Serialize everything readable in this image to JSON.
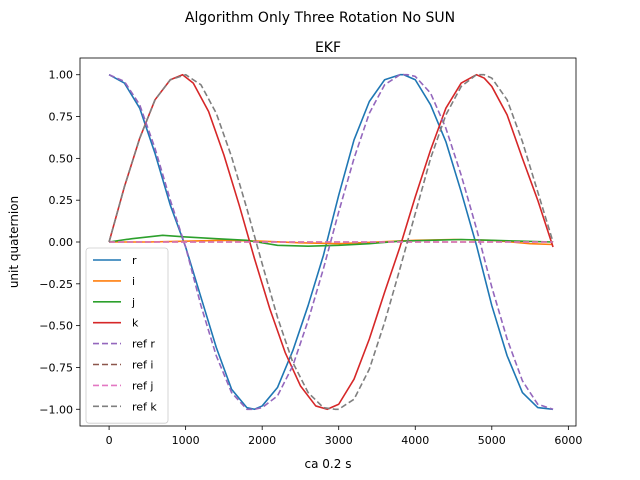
{
  "chart_data": {
    "type": "line",
    "suptitle": "Algorithm Only Three Rotation No SUN",
    "title": "EKF",
    "xlabel": "ca 0.2 s",
    "ylabel": "unit quaternion",
    "xlim": [
      -380,
      6100
    ],
    "ylim": [
      -1.1,
      1.1
    ],
    "xticks": [
      0,
      1000,
      2000,
      3000,
      4000,
      5000,
      6000
    ],
    "yticks": [
      -1.0,
      -0.75,
      -0.5,
      -0.25,
      0.0,
      0.25,
      0.5,
      0.75,
      1.0
    ],
    "grid": false,
    "legend_position": "lower-left",
    "series": [
      {
        "name": "r",
        "color": "#1f77b4",
        "dash": "solid",
        "x": [
          0,
          200,
          400,
          600,
          800,
          1000,
          1200,
          1400,
          1600,
          1800,
          1900,
          2000,
          2200,
          2400,
          2600,
          2800,
          3000,
          3200,
          3400,
          3600,
          3800,
          3850,
          4000,
          4200,
          4400,
          4600,
          4800,
          5000,
          5200,
          5400,
          5600,
          5800
        ],
        "y": [
          1.0,
          0.95,
          0.8,
          0.53,
          0.22,
          -0.03,
          -0.33,
          -0.63,
          -0.88,
          -0.99,
          -1.0,
          -0.98,
          -0.87,
          -0.65,
          -0.38,
          -0.08,
          0.28,
          0.61,
          0.84,
          0.97,
          1.0,
          1.0,
          0.97,
          0.82,
          0.6,
          0.3,
          -0.02,
          -0.38,
          -0.68,
          -0.9,
          -0.99,
          -1.0
        ]
      },
      {
        "name": "i",
        "color": "#ff7f0e",
        "dash": "solid",
        "x": [
          0,
          500,
          1000,
          1500,
          2000,
          2500,
          3000,
          3500,
          4000,
          4500,
          5000,
          5500,
          5800
        ],
        "y": [
          0.0,
          0.0,
          0.005,
          0.01,
          0.005,
          -0.005,
          -0.01,
          0.0,
          0.01,
          0.015,
          0.01,
          -0.01,
          -0.015
        ]
      },
      {
        "name": "j",
        "color": "#2ca02c",
        "dash": "solid",
        "x": [
          0,
          300,
          700,
          1000,
          1400,
          1800,
          2200,
          2600,
          3000,
          3400,
          3800,
          4200,
          4600,
          5000,
          5400,
          5800
        ],
        "y": [
          0.0,
          0.02,
          0.04,
          0.03,
          0.02,
          0.01,
          -0.02,
          -0.025,
          -0.02,
          -0.01,
          0.005,
          0.01,
          0.015,
          0.01,
          0.005,
          0.0
        ]
      },
      {
        "name": "k",
        "color": "#d62728",
        "dash": "solid",
        "x": [
          0,
          200,
          400,
          600,
          800,
          960,
          1100,
          1300,
          1500,
          1700,
          1900,
          2100,
          2300,
          2500,
          2700,
          2850,
          3000,
          3200,
          3400,
          3600,
          3800,
          4000,
          4200,
          4400,
          4600,
          4800,
          4900,
          5000,
          5200,
          5400,
          5600,
          5800
        ],
        "y": [
          0.0,
          0.33,
          0.62,
          0.85,
          0.97,
          1.0,
          0.95,
          0.78,
          0.52,
          0.22,
          -0.1,
          -0.4,
          -0.66,
          -0.86,
          -0.98,
          -1.0,
          -0.97,
          -0.82,
          -0.58,
          -0.3,
          -0.03,
          0.27,
          0.55,
          0.8,
          0.95,
          1.0,
          0.98,
          0.93,
          0.76,
          0.5,
          0.25,
          -0.03
        ]
      },
      {
        "name": "ref r",
        "color": "#9467bd",
        "dash": "dashed",
        "x": [
          0,
          200,
          400,
          600,
          800,
          1000,
          1200,
          1400,
          1600,
          1800,
          1900,
          2000,
          2200,
          2400,
          2600,
          2800,
          3000,
          3200,
          3400,
          3600,
          3800,
          3900,
          4000,
          4200,
          4400,
          4600,
          4800,
          5000,
          5200,
          5400,
          5600,
          5800
        ],
        "y": [
          1.0,
          0.96,
          0.82,
          0.56,
          0.25,
          -0.03,
          -0.38,
          -0.68,
          -0.9,
          -1.0,
          -1.0,
          -0.99,
          -0.92,
          -0.74,
          -0.47,
          -0.16,
          0.18,
          0.5,
          0.77,
          0.94,
          1.0,
          1.0,
          0.99,
          0.89,
          0.68,
          0.4,
          0.08,
          -0.27,
          -0.58,
          -0.83,
          -0.97,
          -1.0
        ]
      },
      {
        "name": "ref i",
        "color": "#8c564b",
        "dash": "dashed",
        "x": [
          0,
          1000,
          2000,
          3000,
          4000,
          5000,
          5800
        ],
        "y": [
          0.0,
          0.0,
          0.0,
          0.0,
          0.0,
          0.0,
          0.0
        ]
      },
      {
        "name": "ref j",
        "color": "#e377c2",
        "dash": "dashed",
        "x": [
          0,
          1000,
          2000,
          3000,
          4000,
          5000,
          5800
        ],
        "y": [
          0.0,
          0.0,
          0.0,
          0.0,
          0.0,
          0.0,
          0.0
        ]
      },
      {
        "name": "ref k",
        "color": "#7f7f7f",
        "dash": "dashed",
        "x": [
          0,
          200,
          400,
          600,
          800,
          1000,
          1200,
          1400,
          1600,
          1800,
          2000,
          2200,
          2400,
          2600,
          2800,
          2950,
          3000,
          3200,
          3400,
          3600,
          3800,
          4000,
          4200,
          4400,
          4600,
          4800,
          4900,
          5000,
          5200,
          5400,
          5600,
          5800
        ],
        "y": [
          0.0,
          0.33,
          0.62,
          0.85,
          0.97,
          1.0,
          0.94,
          0.77,
          0.51,
          0.2,
          -0.13,
          -0.45,
          -0.72,
          -0.9,
          -0.99,
          -1.0,
          -1.0,
          -0.94,
          -0.76,
          -0.48,
          -0.16,
          0.17,
          0.5,
          0.76,
          0.93,
          1.0,
          1.0,
          0.98,
          0.85,
          0.6,
          0.3,
          0.0
        ]
      }
    ]
  }
}
